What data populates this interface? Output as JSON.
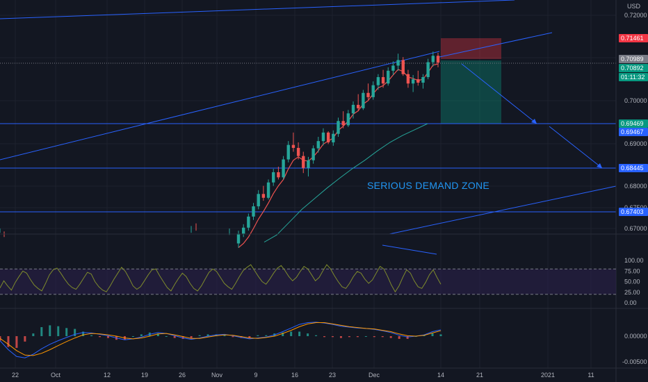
{
  "currency": "USD",
  "annotation": "SERIOUS DEMAND ZONE",
  "colors": {
    "background": "#131722",
    "grid": "#1e222d",
    "up": "#26a69a",
    "down": "#ef5350",
    "line": "#2962ff",
    "ema_fast": "#ef5350",
    "ema_slow": "#26a69a",
    "rsi": "#7e8b2c",
    "rsi_band": "#2a1f4a",
    "macd": "#2962ff",
    "signal": "#ff9800",
    "stop_zone": "#f23645",
    "target_zone": "#089981"
  },
  "price_tags": [
    {
      "label": "0.71461",
      "color": "#f23645"
    },
    {
      "label": "0.70989",
      "color": "#787b86"
    },
    {
      "label": "0.70892",
      "color": "#089981"
    },
    {
      "label": "01:11:32",
      "color": "#089981"
    },
    {
      "label": "0.69469",
      "color": "#089981"
    },
    {
      "label": "0.69467",
      "color": "#2962ff"
    },
    {
      "label": "0.68445",
      "color": "#2962ff"
    },
    {
      "label": "0.67403",
      "color": "#2962ff"
    }
  ],
  "chart_data": [
    {
      "type": "candlestick",
      "title": "",
      "ylabel": "USD",
      "ylim": [
        0.667,
        0.7215
      ],
      "y_ticks": [
        "0.72000",
        "0.71000",
        "0.70000",
        "0.69000",
        "0.68000",
        "0.67500",
        "0.67000"
      ],
      "x_ticks": [
        "22",
        "Oct",
        "12",
        "19",
        "26",
        "Nov",
        "9",
        "16",
        "23",
        "Dec",
        "14",
        "21",
        "2021",
        "11"
      ],
      "horizontal_levels": [
        0.69469,
        0.68445,
        0.67403,
        0.70989
      ],
      "trade_setup": {
        "entry": 0.70892,
        "stop": 0.71461,
        "target": 0.69467
      },
      "ohlc": [
        [
          0.6665,
          0.6695,
          0.6655,
          0.6688
        ],
        [
          0.6688,
          0.671,
          0.668,
          0.6702
        ],
        [
          0.6702,
          0.6735,
          0.6695,
          0.6728
        ],
        [
          0.6728,
          0.676,
          0.672,
          0.6752
        ],
        [
          0.6752,
          0.679,
          0.6745,
          0.6781
        ],
        [
          0.6781,
          0.68,
          0.6765,
          0.6772
        ],
        [
          0.6772,
          0.6815,
          0.6768,
          0.6808
        ],
        [
          0.6808,
          0.684,
          0.68,
          0.6832
        ],
        [
          0.6832,
          0.6845,
          0.6815,
          0.682
        ],
        [
          0.682,
          0.687,
          0.6815,
          0.6862
        ],
        [
          0.6862,
          0.6905,
          0.6855,
          0.6896
        ],
        [
          0.6896,
          0.6925,
          0.688,
          0.6889
        ],
        [
          0.6889,
          0.6902,
          0.6862,
          0.687
        ],
        [
          0.687,
          0.688,
          0.683,
          0.6842
        ],
        [
          0.6842,
          0.6868,
          0.6822,
          0.686
        ],
        [
          0.686,
          0.6895,
          0.6852,
          0.6888
        ],
        [
          0.6888,
          0.6915,
          0.6878,
          0.6905
        ],
        [
          0.6905,
          0.6935,
          0.6895,
          0.6925
        ],
        [
          0.6925,
          0.6928,
          0.6898,
          0.6902
        ],
        [
          0.6902,
          0.693,
          0.6894,
          0.6922
        ],
        [
          0.6922,
          0.696,
          0.6915,
          0.6952
        ],
        [
          0.6952,
          0.6975,
          0.6935,
          0.6942
        ],
        [
          0.6942,
          0.6978,
          0.6938,
          0.697
        ],
        [
          0.697,
          0.6998,
          0.6958,
          0.699
        ],
        [
          0.699,
          0.7015,
          0.6975,
          0.6982
        ],
        [
          0.6982,
          0.7025,
          0.6978,
          0.7018
        ],
        [
          0.7018,
          0.704,
          0.7002,
          0.7008
        ],
        [
          0.7008,
          0.7045,
          0.7002,
          0.7036
        ],
        [
          0.7036,
          0.7062,
          0.7025,
          0.7055
        ],
        [
          0.7055,
          0.7072,
          0.703,
          0.704
        ],
        [
          0.704,
          0.7078,
          0.7035,
          0.707
        ],
        [
          0.707,
          0.7092,
          0.706,
          0.7082
        ],
        [
          0.7082,
          0.711,
          0.707,
          0.7095
        ],
        [
          0.7095,
          0.7102,
          0.7058,
          0.7062
        ],
        [
          0.7062,
          0.7072,
          0.703,
          0.704
        ],
        [
          0.704,
          0.706,
          0.702,
          0.705
        ],
        [
          0.705,
          0.707,
          0.7035,
          0.7042
        ],
        [
          0.7042,
          0.7062,
          0.7028,
          0.7055
        ],
        [
          0.7055,
          0.7098,
          0.705,
          0.709
        ],
        [
          0.709,
          0.7115,
          0.708,
          0.7105
        ],
        [
          0.7105,
          0.7112,
          0.7078,
          0.7089
        ]
      ],
      "ohlc_x_range": [
        "Nov 9",
        "Dec 11"
      ],
      "moving_averages": [
        {
          "name": "",
          "values": [
            0.6655,
            0.6665,
            0.668,
            0.67,
            0.6722,
            0.674,
            0.676,
            0.6782,
            0.68,
            0.6815,
            0.684,
            0.686,
            0.6868,
            0.686,
            0.6858,
            0.6868,
            0.6882,
            0.6898,
            0.6905,
            0.6912,
            0.693,
            0.694,
            0.6952,
            0.6968,
            0.6976,
            0.6992,
            0.7,
            0.7016,
            0.703,
            0.7035,
            0.7046,
            0.706,
            0.7073,
            0.7068,
            0.7055,
            0.7052,
            0.7047,
            0.705,
            0.7066,
            0.7083,
            0.7086
          ]
        },
        {
          "name": "",
          "values": [
            0.6668,
            0.6685,
            0.6715,
            0.6745,
            0.677,
            0.6795,
            0.6818,
            0.684,
            0.686,
            0.6882,
            0.6902,
            0.6918,
            0.6932,
            0.6946
          ]
        }
      ],
      "long_trendline": [
        [
          0.696,
          0.7095
        ],
        [
          0.695,
          0.715
        ]
      ],
      "projection_arrows": [
        [
          0.7089,
          0.6946
        ],
        [
          0.6946,
          0.6844
        ]
      ]
    },
    {
      "type": "line",
      "title": "",
      "ylim": [
        0,
        100
      ],
      "y_ticks": [
        "100.00",
        "75.00",
        "50.00",
        "25.00",
        "0.00"
      ],
      "bands": [
        20,
        80
      ],
      "values": [
        35,
        52,
        40,
        30,
        48,
        62,
        75,
        70,
        55,
        42,
        34,
        28,
        46,
        66,
        78,
        82,
        70,
        56,
        44,
        36,
        32,
        44,
        58,
        72,
        68,
        50,
        38,
        30,
        26,
        40,
        56,
        70,
        84,
        74,
        58,
        40,
        32,
        38,
        52,
        66,
        78,
        80,
        64,
        50,
        36,
        28,
        44,
        58,
        70,
        62,
        46,
        34,
        28,
        40,
        56,
        72,
        80,
        74,
        60,
        46,
        38,
        32,
        46,
        62,
        76,
        84,
        90,
        76,
        62,
        50,
        44,
        56,
        70,
        82,
        88,
        76,
        62,
        52,
        60,
        74,
        86,
        80,
        66,
        52,
        60,
        76,
        90,
        80,
        64,
        50,
        38,
        34,
        46,
        62,
        74,
        70,
        56,
        46,
        54,
        70,
        86,
        80,
        62,
        42,
        26,
        40,
        60,
        78,
        70,
        52,
        38,
        34,
        48,
        66,
        78,
        60,
        44
      ]
    },
    {
      "type": "line",
      "title": "",
      "y_ticks": [
        "0.00000",
        "-0.00500"
      ],
      "ylim": [
        -0.006,
        0.0038
      ],
      "series": [
        {
          "name": "",
          "values": [
            -0.001,
            -0.003,
            -0.0045,
            -0.0048,
            -0.004,
            -0.0028,
            -0.0018,
            -0.001,
            -0.0003,
            0.0004,
            0.0008,
            0.0007,
            0.0004,
            0.0001,
            -0.0004,
            -0.0008,
            -0.0006,
            -0.0002,
            0.0004,
            0.0008,
            0.0006,
            0.0001,
            -0.0004,
            -0.0007,
            -0.0004,
            0.0,
            0.0003,
            0.0004,
            0.0001,
            -0.0003,
            -0.0006,
            -0.0004,
            -0.0002,
            0.0003,
            0.001,
            0.0018,
            0.0026,
            0.003,
            0.0031,
            0.0029,
            0.0026,
            0.0022,
            0.002,
            0.0018,
            0.0017,
            0.0015,
            0.0012,
            0.0008,
            0.0002,
            -0.0002,
            0.0,
            0.0003,
            0.001,
            0.0014
          ]
        },
        {
          "name": "",
          "values": [
            -0.0005,
            -0.0018,
            -0.0032,
            -0.0042,
            -0.0043,
            -0.0038,
            -0.003,
            -0.0021,
            -0.0012,
            -0.0004,
            0.0003,
            0.0006,
            0.0005,
            0.0003,
            0.0,
            -0.0004,
            -0.0006,
            -0.0004,
            0.0,
            0.0005,
            0.0006,
            0.0003,
            -0.0001,
            -0.0005,
            -0.0005,
            -0.0002,
            0.0001,
            0.0003,
            0.0002,
            -0.0001,
            -0.0004,
            -0.0005,
            -0.0003,
            0.0,
            0.0006,
            0.0013,
            0.0021,
            0.0027,
            0.003,
            0.003,
            0.0027,
            0.0024,
            0.0021,
            0.0019,
            0.0017,
            0.0016,
            0.0013,
            0.001,
            0.0005,
            0.0001,
            0.0,
            0.0002,
            0.0007,
            0.0012
          ]
        }
      ]
    }
  ]
}
